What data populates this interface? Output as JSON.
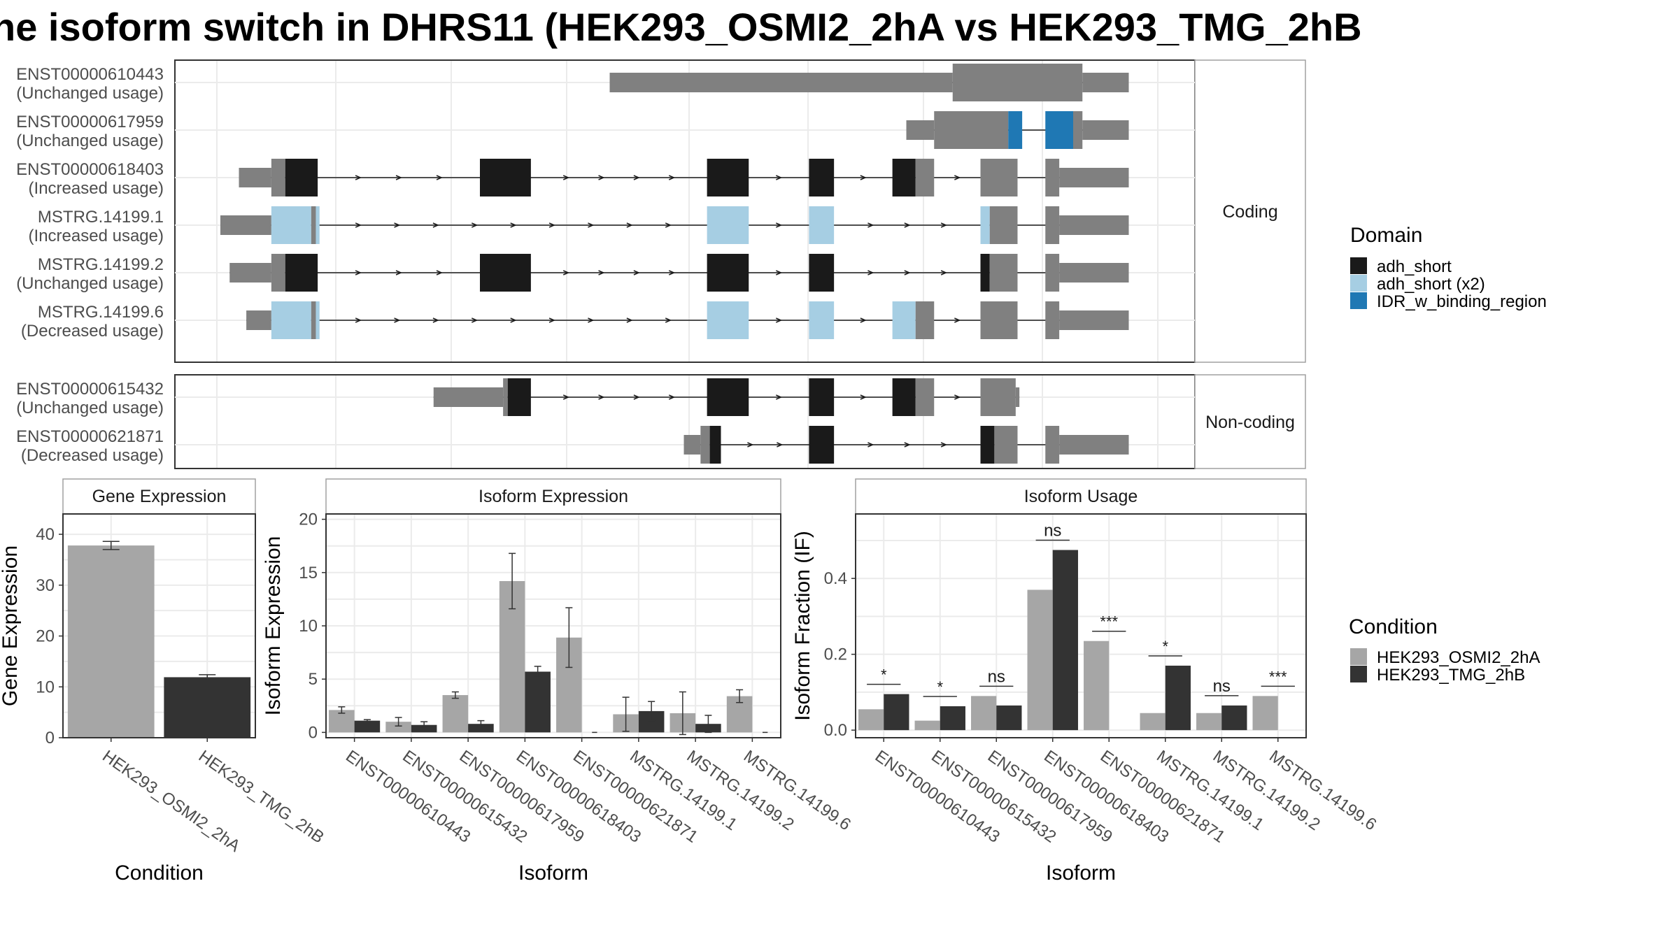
{
  "title": "he isoform switch in DHRS11 (HEK293_OSMI2_2hA vs HEK293_TMG_2hB",
  "colors": {
    "exon": "#808080",
    "adh_short": "#1a1a1a",
    "adh_short_x2": "#a6cee3",
    "IDR": "#1f78b4",
    "condA": "#a6a6a6",
    "condB": "#333333",
    "grid": "#ebebeb",
    "panel_border": "#333333",
    "strip_border": "#a0a0a0"
  },
  "legend_domain": {
    "title": "Domain",
    "items": [
      {
        "label": "adh_short",
        "color": "#1a1a1a"
      },
      {
        "label": "adh_short (x2)",
        "color": "#a6cee3"
      },
      {
        "label": "IDR_w_binding_region",
        "color": "#1f78b4"
      }
    ]
  },
  "legend_condition": {
    "title": "Condition",
    "items": [
      {
        "label": "HEK293_OSMI2_2hA",
        "color": "#a6a6a6"
      },
      {
        "label": "HEK293_TMG_2hB",
        "color": "#333333"
      }
    ]
  },
  "chart_data": [
    {
      "type": "gene_structure",
      "groups": [
        {
          "strip": "Coding",
          "isoforms": [
            {
              "id": "ENST00000610443",
              "usage": "(Unchanged usage)",
              "segments": [
                {
                  "start": 0.42,
                  "end": 0.79,
                  "kind": "utr"
                },
                {
                  "start": 0.79,
                  "end": 0.93,
                  "kind": "cds"
                },
                {
                  "start": 0.93,
                  "end": 0.98,
                  "kind": "utr"
                }
              ]
            },
            {
              "id": "ENST00000617959",
              "usage": "(Unchanged usage)",
              "segments": [
                {
                  "start": 0.74,
                  "end": 0.77,
                  "kind": "utr"
                },
                {
                  "start": 0.77,
                  "end": 0.85,
                  "kind": "cds"
                },
                {
                  "start": 0.85,
                  "end": 0.865,
                  "kind": "cds",
                  "domain": "IDR"
                },
                {
                  "start": 0.89,
                  "end": 0.92,
                  "kind": "cds",
                  "domain": "IDR"
                },
                {
                  "start": 0.92,
                  "end": 0.93,
                  "kind": "cds"
                },
                {
                  "start": 0.93,
                  "end": 0.98,
                  "kind": "utr"
                }
              ]
            },
            {
              "id": "ENST00000618403",
              "usage": "(Increased usage)",
              "segments": [
                {
                  "start": 0.02,
                  "end": 0.055,
                  "kind": "utr"
                },
                {
                  "start": 0.055,
                  "end": 0.07,
                  "kind": "cds"
                },
                {
                  "start": 0.07,
                  "end": 0.105,
                  "kind": "cds",
                  "domain": "adh_short"
                },
                {
                  "start": 0.28,
                  "end": 0.335,
                  "kind": "cds",
                  "domain": "adh_short"
                },
                {
                  "start": 0.525,
                  "end": 0.57,
                  "kind": "cds",
                  "domain": "adh_short"
                },
                {
                  "start": 0.635,
                  "end": 0.662,
                  "kind": "cds",
                  "domain": "adh_short"
                },
                {
                  "start": 0.725,
                  "end": 0.75,
                  "kind": "cds",
                  "domain": "adh_short"
                },
                {
                  "start": 0.75,
                  "end": 0.77,
                  "kind": "cds"
                },
                {
                  "start": 0.82,
                  "end": 0.86,
                  "kind": "cds"
                },
                {
                  "start": 0.89,
                  "end": 0.905,
                  "kind": "cds"
                },
                {
                  "start": 0.905,
                  "end": 0.98,
                  "kind": "utr"
                }
              ]
            },
            {
              "id": "MSTRG.14199.1",
              "usage": "(Increased usage)",
              "segments": [
                {
                  "start": 0.0,
                  "end": 0.055,
                  "kind": "utr"
                },
                {
                  "start": 0.055,
                  "end": 0.098,
                  "kind": "cds",
                  "domain": "adh_short_x2"
                },
                {
                  "start": 0.098,
                  "end": 0.103,
                  "kind": "cds"
                },
                {
                  "start": 0.103,
                  "end": 0.107,
                  "kind": "cds",
                  "domain": "adh_short_x2"
                },
                {
                  "start": 0.525,
                  "end": 0.57,
                  "kind": "cds",
                  "domain": "adh_short_x2"
                },
                {
                  "start": 0.635,
                  "end": 0.662,
                  "kind": "cds",
                  "domain": "adh_short_x2"
                },
                {
                  "start": 0.82,
                  "end": 0.83,
                  "kind": "cds",
                  "domain": "adh_short_x2"
                },
                {
                  "start": 0.83,
                  "end": 0.86,
                  "kind": "cds"
                },
                {
                  "start": 0.89,
                  "end": 0.905,
                  "kind": "cds"
                },
                {
                  "start": 0.905,
                  "end": 0.98,
                  "kind": "utr"
                }
              ]
            },
            {
              "id": "MSTRG.14199.2",
              "usage": "(Unchanged usage)",
              "segments": [
                {
                  "start": 0.01,
                  "end": 0.055,
                  "kind": "utr"
                },
                {
                  "start": 0.055,
                  "end": 0.07,
                  "kind": "cds"
                },
                {
                  "start": 0.07,
                  "end": 0.105,
                  "kind": "cds",
                  "domain": "adh_short"
                },
                {
                  "start": 0.28,
                  "end": 0.335,
                  "kind": "cds",
                  "domain": "adh_short"
                },
                {
                  "start": 0.525,
                  "end": 0.57,
                  "kind": "cds",
                  "domain": "adh_short"
                },
                {
                  "start": 0.635,
                  "end": 0.662,
                  "kind": "cds",
                  "domain": "adh_short"
                },
                {
                  "start": 0.82,
                  "end": 0.83,
                  "kind": "cds",
                  "domain": "adh_short"
                },
                {
                  "start": 0.83,
                  "end": 0.86,
                  "kind": "cds"
                },
                {
                  "start": 0.89,
                  "end": 0.905,
                  "kind": "cds"
                },
                {
                  "start": 0.905,
                  "end": 0.98,
                  "kind": "utr"
                }
              ]
            },
            {
              "id": "MSTRG.14199.6",
              "usage": "(Decreased usage)",
              "segments": [
                {
                  "start": 0.028,
                  "end": 0.055,
                  "kind": "utr"
                },
                {
                  "start": 0.055,
                  "end": 0.098,
                  "kind": "cds",
                  "domain": "adh_short_x2"
                },
                {
                  "start": 0.098,
                  "end": 0.103,
                  "kind": "cds"
                },
                {
                  "start": 0.103,
                  "end": 0.107,
                  "kind": "cds",
                  "domain": "adh_short_x2"
                },
                {
                  "start": 0.525,
                  "end": 0.57,
                  "kind": "cds",
                  "domain": "adh_short_x2"
                },
                {
                  "start": 0.635,
                  "end": 0.662,
                  "kind": "cds",
                  "domain": "adh_short_x2"
                },
                {
                  "start": 0.725,
                  "end": 0.75,
                  "kind": "cds",
                  "domain": "adh_short_x2"
                },
                {
                  "start": 0.75,
                  "end": 0.77,
                  "kind": "cds"
                },
                {
                  "start": 0.82,
                  "end": 0.86,
                  "kind": "cds"
                },
                {
                  "start": 0.89,
                  "end": 0.905,
                  "kind": "cds"
                },
                {
                  "start": 0.905,
                  "end": 0.98,
                  "kind": "utr"
                }
              ]
            }
          ]
        },
        {
          "strip": "Non-coding",
          "isoforms": [
            {
              "id": "ENST00000615432",
              "usage": "(Unchanged usage)",
              "segments": [
                {
                  "start": 0.23,
                  "end": 0.305,
                  "kind": "utr"
                },
                {
                  "start": 0.305,
                  "end": 0.31,
                  "kind": "cds"
                },
                {
                  "start": 0.31,
                  "end": 0.335,
                  "kind": "cds",
                  "domain": "adh_short"
                },
                {
                  "start": 0.525,
                  "end": 0.57,
                  "kind": "cds",
                  "domain": "adh_short"
                },
                {
                  "start": 0.635,
                  "end": 0.662,
                  "kind": "cds",
                  "domain": "adh_short"
                },
                {
                  "start": 0.725,
                  "end": 0.75,
                  "kind": "cds",
                  "domain": "adh_short"
                },
                {
                  "start": 0.75,
                  "end": 0.77,
                  "kind": "cds"
                },
                {
                  "start": 0.82,
                  "end": 0.858,
                  "kind": "cds"
                },
                {
                  "start": 0.858,
                  "end": 0.862,
                  "kind": "utr"
                }
              ]
            },
            {
              "id": "ENST00000621871",
              "usage": "(Decreased usage)",
              "segments": [
                {
                  "start": 0.5,
                  "end": 0.518,
                  "kind": "utr"
                },
                {
                  "start": 0.518,
                  "end": 0.528,
                  "kind": "cds"
                },
                {
                  "start": 0.528,
                  "end": 0.54,
                  "kind": "cds",
                  "domain": "adh_short"
                },
                {
                  "start": 0.635,
                  "end": 0.662,
                  "kind": "cds",
                  "domain": "adh_short"
                },
                {
                  "start": 0.82,
                  "end": 0.835,
                  "kind": "cds",
                  "domain": "adh_short"
                },
                {
                  "start": 0.835,
                  "end": 0.86,
                  "kind": "cds"
                },
                {
                  "start": 0.89,
                  "end": 0.905,
                  "kind": "cds"
                },
                {
                  "start": 0.905,
                  "end": 0.98,
                  "kind": "utr"
                }
              ]
            }
          ]
        }
      ]
    },
    {
      "type": "bar",
      "strip": "Gene Expression",
      "xlabel": "Condition",
      "ylabel": "Gene Expression",
      "ylim": [
        0,
        44
      ],
      "yticks": [
        0,
        10,
        20,
        30,
        40
      ],
      "categories": [
        "HEK293_OSMI2_2hA",
        "HEK293_TMG_2hB"
      ],
      "values": [
        37.8,
        11.9
      ],
      "errors": [
        0.8,
        0.5
      ]
    },
    {
      "type": "bar",
      "strip": "Isoform Expression",
      "xlabel": "Isoform",
      "ylabel": "Isoform Expression",
      "ylim": [
        -0.5,
        20.5
      ],
      "yticks": [
        0,
        5,
        10,
        15,
        20
      ],
      "categories": [
        "ENST00000610443",
        "ENST00000615432",
        "ENST00000617959",
        "ENST00000618403",
        "ENST00000621871",
        "MSTRG.14199.1",
        "MSTRG.14199.2",
        "MSTRG.14199.6"
      ],
      "series": [
        {
          "name": "HEK293_OSMI2_2hA",
          "values": [
            2.1,
            1.0,
            3.5,
            14.2,
            8.9,
            1.7,
            1.8,
            3.4
          ],
          "errors": [
            0.3,
            0.4,
            0.3,
            2.6,
            2.8,
            1.6,
            2.0,
            0.6
          ]
        },
        {
          "name": "HEK293_TMG_2hB",
          "values": [
            1.1,
            0.7,
            0.8,
            5.7,
            0.0,
            2.0,
            0.8,
            0.0
          ],
          "errors": [
            0.1,
            0.3,
            0.3,
            0.5,
            0.0,
            0.9,
            0.8,
            0.0
          ]
        }
      ]
    },
    {
      "type": "bar",
      "strip": "Isoform Usage",
      "xlabel": "Isoform",
      "ylabel": "Isoform Fraction (IF)",
      "ylim": [
        -0.02,
        0.57
      ],
      "yticks": [
        0.0,
        0.2,
        0.4
      ],
      "ytick_labels": [
        "0.0",
        "0.2",
        "0.4"
      ],
      "categories": [
        "ENST00000610443",
        "ENST00000615432",
        "ENST00000617959",
        "ENST00000618403",
        "ENST00000621871",
        "MSTRG.14199.1",
        "MSTRG.14199.2",
        "MSTRG.14199.6"
      ],
      "series": [
        {
          "name": "HEK293_OSMI2_2hA",
          "values": [
            0.055,
            0.025,
            0.09,
            0.37,
            0.235,
            0.045,
            0.045,
            0.09
          ]
        },
        {
          "name": "HEK293_TMG_2hB",
          "values": [
            0.095,
            0.063,
            0.065,
            0.475,
            0.0,
            0.17,
            0.065,
            0.0
          ]
        }
      ],
      "significance": [
        "*",
        "*",
        "ns",
        "ns",
        "***",
        "*",
        "ns",
        "***"
      ]
    }
  ]
}
